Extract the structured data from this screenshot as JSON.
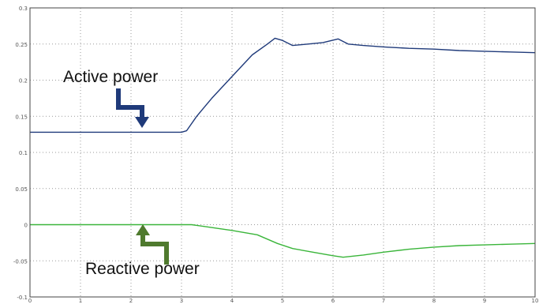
{
  "chart_data": {
    "type": "line",
    "xlim": [
      0,
      10
    ],
    "ylim": [
      -0.1,
      0.3
    ],
    "x_ticks": [
      {
        "value": 0,
        "label": "0"
      },
      {
        "value": 1,
        "label": "1"
      },
      {
        "value": 2,
        "label": "2"
      },
      {
        "value": 3,
        "label": "3"
      },
      {
        "value": 4,
        "label": "4"
      },
      {
        "value": 5,
        "label": "5"
      },
      {
        "value": 6,
        "label": "6"
      },
      {
        "value": 7,
        "label": "7"
      },
      {
        "value": 8,
        "label": "8"
      },
      {
        "value": 9,
        "label": "9"
      },
      {
        "value": 10,
        "label": "10"
      }
    ],
    "y_ticks": [
      {
        "value": -0.1,
        "label": "-0.1"
      },
      {
        "value": -0.05,
        "label": "-0.05"
      },
      {
        "value": 0,
        "label": "0"
      },
      {
        "value": 0.05,
        "label": "0.05"
      },
      {
        "value": 0.1,
        "label": "0.1"
      },
      {
        "value": 0.15,
        "label": "0.15"
      },
      {
        "value": 0.2,
        "label": "0.2"
      },
      {
        "value": 0.25,
        "label": "0.25"
      },
      {
        "value": 0.3,
        "label": "0.3"
      }
    ],
    "grid": true,
    "series": [
      {
        "label": "Active power",
        "color": "#1f3a7a",
        "x": [
          0,
          3.0,
          3.1,
          3.3,
          3.6,
          4.0,
          4.4,
          4.7,
          4.85,
          5.0,
          5.2,
          5.5,
          5.8,
          6.1,
          6.3,
          6.6,
          7.0,
          7.5,
          8.0,
          8.5,
          9.0,
          9.5,
          10
        ],
        "y": [
          0.128,
          0.128,
          0.13,
          0.15,
          0.175,
          0.205,
          0.235,
          0.25,
          0.258,
          0.255,
          0.248,
          0.25,
          0.252,
          0.257,
          0.25,
          0.248,
          0.246,
          0.244,
          0.243,
          0.241,
          0.24,
          0.239,
          0.238
        ]
      },
      {
        "label": "Reactive power",
        "color": "#3ab53a",
        "x": [
          0,
          3.2,
          3.5,
          4.0,
          4.5,
          4.9,
          5.2,
          5.6,
          6.0,
          6.2,
          6.6,
          7.0,
          7.5,
          8.0,
          8.5,
          9.0,
          9.5,
          10
        ],
        "y": [
          0.0,
          0.0,
          -0.003,
          -0.008,
          -0.014,
          -0.026,
          -0.033,
          -0.038,
          -0.043,
          -0.045,
          -0.042,
          -0.038,
          -0.034,
          -0.031,
          -0.029,
          -0.028,
          -0.027,
          -0.026
        ]
      }
    ]
  }
}
